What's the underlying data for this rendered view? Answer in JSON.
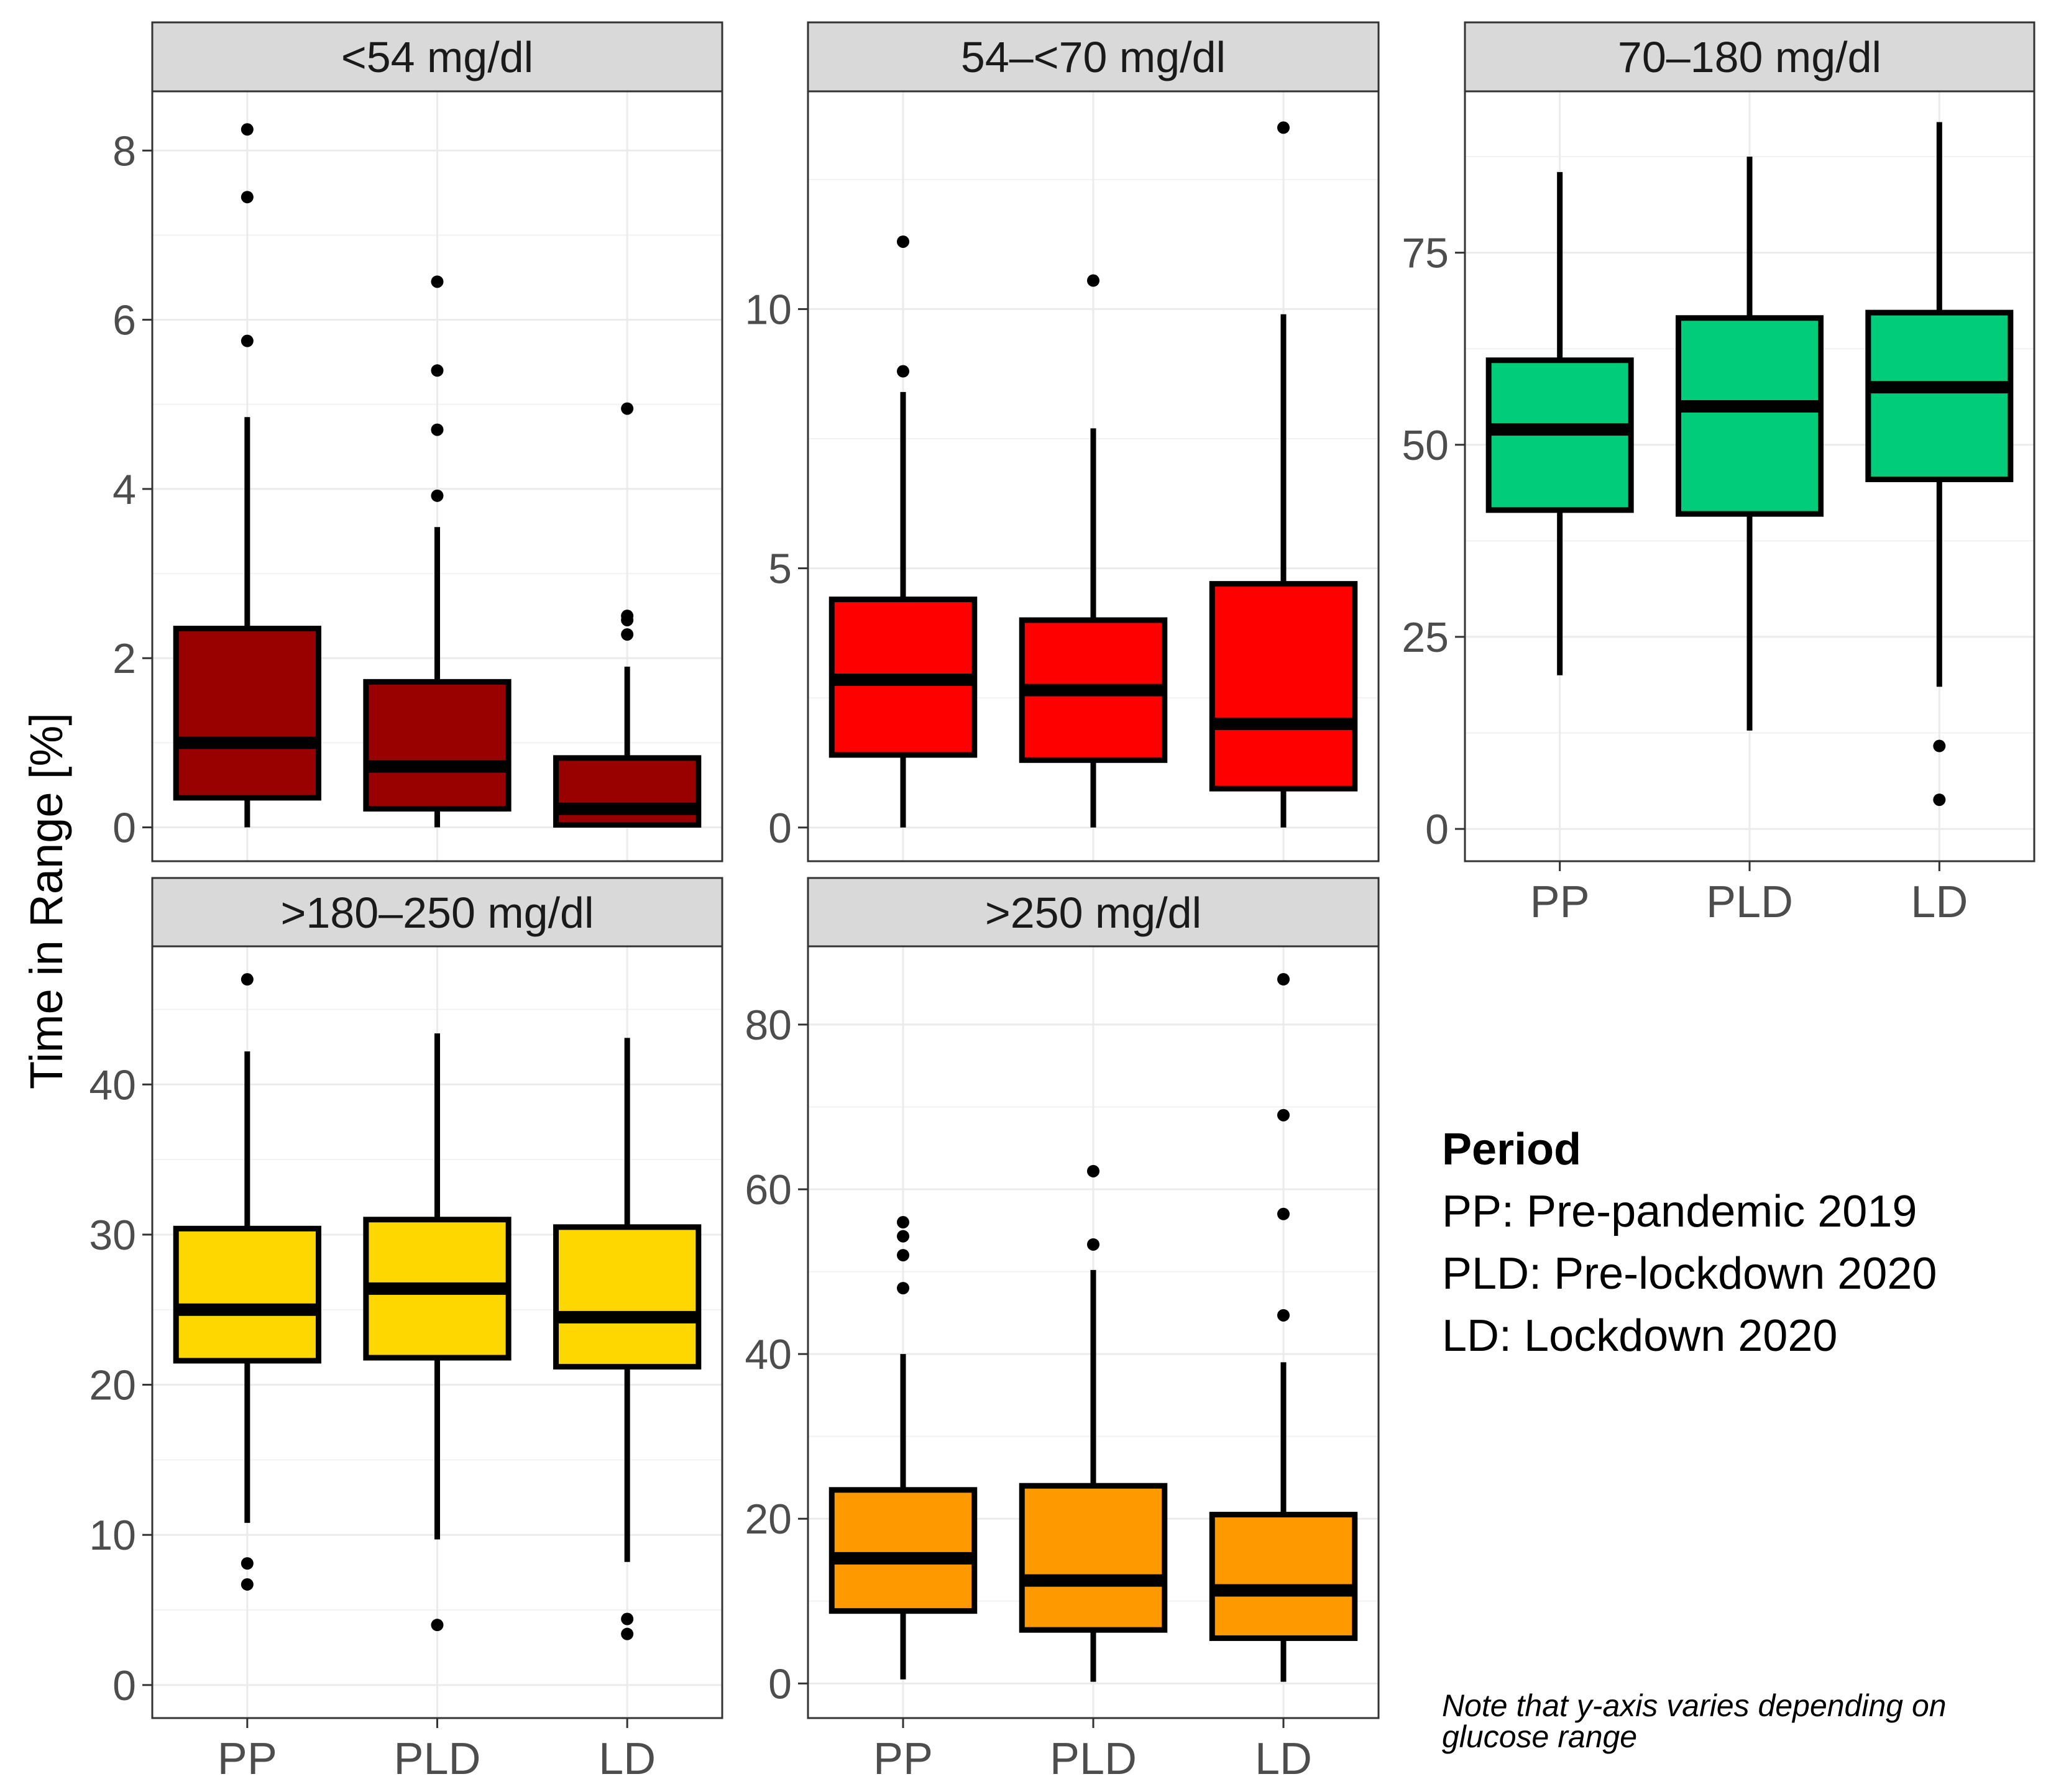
{
  "chart_data": {
    "type": "boxplot",
    "y_axis_title": "Time in Range [%]",
    "categories": [
      "PP",
      "PLD",
      "LD"
    ],
    "legend": {
      "title": "Period",
      "items": [
        "PP: Pre-pandemic 2019",
        "PLD: Pre-lockdown 2020",
        "LD: Lockdown 2020"
      ]
    },
    "note": "Note that y-axis varies depending on glucose range",
    "panels": [
      {
        "title": "<54 mg/dl",
        "fill_color": "#990000",
        "ylim": [
          -0.4,
          8.7
        ],
        "ticks": [
          0,
          2,
          4,
          6,
          8
        ],
        "boxes": [
          {
            "category": "PP",
            "min": 0,
            "q1": 0.35,
            "median": 1.0,
            "q3": 2.35,
            "max": 4.85,
            "outliers": [
              5.75,
              7.45,
              8.25
            ]
          },
          {
            "category": "PLD",
            "min": 0,
            "q1": 0.22,
            "median": 0.72,
            "q3": 1.72,
            "max": 3.55,
            "outliers": [
              3.92,
              4.7,
              5.4,
              6.45
            ]
          },
          {
            "category": "LD",
            "min": 0,
            "q1": 0.03,
            "median": 0.22,
            "q3": 0.82,
            "max": 1.9,
            "outliers": [
              2.28,
              2.45,
              2.5,
              4.95
            ]
          }
        ]
      },
      {
        "title": "54–<70 mg/dl",
        "fill_color": "#ff0000",
        "ylim": [
          -0.65,
          14.2
        ],
        "ticks": [
          0,
          5,
          10
        ],
        "boxes": [
          {
            "category": "PP",
            "min": 0,
            "q1": 1.4,
            "median": 2.85,
            "q3": 4.4,
            "max": 8.4,
            "outliers": [
              8.8,
              11.3
            ]
          },
          {
            "category": "PLD",
            "min": 0,
            "q1": 1.3,
            "median": 2.65,
            "q3": 4.0,
            "max": 7.7,
            "outliers": [
              10.55
            ]
          },
          {
            "category": "LD",
            "min": 0,
            "q1": 0.75,
            "median": 2.0,
            "q3": 4.7,
            "max": 9.9,
            "outliers": [
              13.5
            ]
          }
        ]
      },
      {
        "title": "70–180 mg/dl",
        "fill_color": "#00cc7a",
        "ylim": [
          -4.2,
          96
        ],
        "ticks": [
          0,
          25,
          50,
          75
        ],
        "boxes": [
          {
            "category": "PP",
            "min": 20,
            "q1": 41.5,
            "median": 52.0,
            "q3": 61.0,
            "max": 85.5,
            "outliers": []
          },
          {
            "category": "PLD",
            "min": 12.8,
            "q1": 41.0,
            "median": 55.0,
            "q3": 66.5,
            "max": 87.5,
            "outliers": []
          },
          {
            "category": "LD",
            "min": 18.5,
            "q1": 45.5,
            "median": 57.5,
            "q3": 67.2,
            "max": 92.0,
            "outliers": [
              3.8,
              10.8
            ]
          }
        ]
      },
      {
        "title": ">180–250 mg/dl",
        "fill_color": "#ffd700",
        "ylim": [
          -2.2,
          49.2
        ],
        "ticks": [
          0,
          10,
          20,
          30,
          40
        ],
        "boxes": [
          {
            "category": "PP",
            "min": 10.8,
            "q1": 21.6,
            "median": 25.0,
            "q3": 30.4,
            "max": 42.2,
            "outliers": [
              6.7,
              8.1,
              47.0
            ]
          },
          {
            "category": "PLD",
            "min": 9.7,
            "q1": 21.8,
            "median": 26.4,
            "q3": 31.0,
            "max": 43.4,
            "outliers": [
              4.0
            ]
          },
          {
            "category": "LD",
            "min": 8.2,
            "q1": 21.2,
            "median": 24.5,
            "q3": 30.5,
            "max": 43.1,
            "outliers": [
              3.4,
              4.4
            ]
          }
        ]
      },
      {
        "title": ">250 mg/dl",
        "fill_color": "#ff9900",
        "ylim": [
          -4.2,
          89.5
        ],
        "ticks": [
          0,
          20,
          40,
          60,
          80
        ],
        "boxes": [
          {
            "category": "PP",
            "min": 0.5,
            "q1": 8.8,
            "median": 15.2,
            "q3": 23.5,
            "max": 40.0,
            "outliers": [
              48.0,
              52.0,
              54.3,
              56.0
            ]
          },
          {
            "category": "PLD",
            "min": 0.2,
            "q1": 6.5,
            "median": 12.5,
            "q3": 24.0,
            "max": 50.2,
            "outliers": [
              53.3,
              62.2
            ]
          },
          {
            "category": "LD",
            "min": 0.2,
            "q1": 5.5,
            "median": 11.3,
            "q3": 20.5,
            "max": 39.0,
            "outliers": [
              44.7,
              57.0,
              69.0,
              85.5
            ]
          }
        ]
      }
    ]
  }
}
